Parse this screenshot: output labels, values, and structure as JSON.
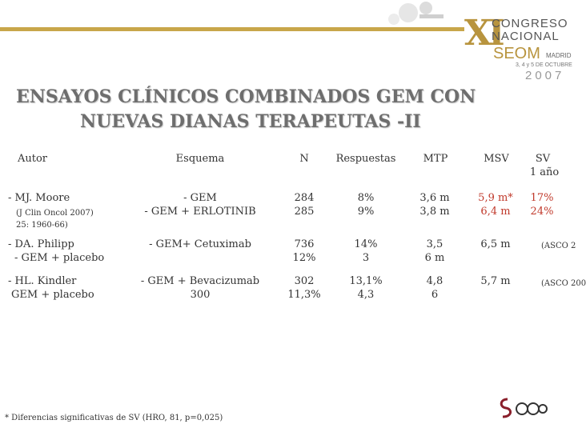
{
  "header": {
    "logo_roman": "XI",
    "logo_line1": "CONGRESO",
    "logo_line2": "NACIONAL",
    "logo_org": "SEOM",
    "logo_city": "MADRID",
    "logo_dates": "3, 4 y 5 DE OCTUBRE",
    "logo_year": "2007"
  },
  "title": {
    "line1": "ENSAYOS CLÍNICOS COMBINADOS GEM CON",
    "line2": "NUEVAS DIANAS TERAPEUTAS -II"
  },
  "table": {
    "headers": {
      "autor": "Autor",
      "esquema": "Esquema",
      "n": "N",
      "respuestas": "Respuestas",
      "mtp": "MTP",
      "msv": "MSV",
      "sv": "SV",
      "sv_sub": "1 año"
    },
    "rows": [
      {
        "autor_line1": "- MJ. Moore",
        "autor_ref1": "(J Clin Oncol 2007)",
        "autor_ref2": "25: 1960-66)",
        "esquema_line1": "- GEM",
        "esquema_line2": "- GEM + ERLOTINIB",
        "n_line1": "284",
        "n_line2": "285",
        "resp_line1": "8%",
        "resp_line2": "9%",
        "mtp_line1": "3,6  m",
        "mtp_line2": "3,8 m",
        "msv_line1": "5,9 m*",
        "msv_line2": "6,4 m",
        "sv_line1": "17%",
        "sv_line2": "24%"
      },
      {
        "autor_line1": "- DA. Philipp",
        "autor_line2": "- GEM + placebo",
        "esquema_line1": "- GEM+ Cetuximab",
        "n_line1": "736",
        "n_line2": "12%",
        "resp_line1": "14%",
        "resp_line2": "3",
        "mtp_line1": "3,5",
        "mtp_line2": "6 m",
        "msv_line1": "6,5 m",
        "sv_line1": "(ASCO 2"
      },
      {
        "autor_line1": "- HL. Kindler",
        "autor_line2": "GEM + placebo",
        "esquema_line1": "- GEM + Bevacizumab",
        "esquema_line2": "300",
        "n_line1": "302",
        "n_line2": "11,3%",
        "resp_line1": "13,1%",
        "resp_line2": "4,3",
        "mtp_line1": "4,8",
        "mtp_line2": "6",
        "msv_line1": "5,7 m",
        "sv_line1": "(ASCO 200"
      }
    ]
  },
  "footnote": "* Diferencias significativas de SV (HRO, 81, p=0,025)",
  "footer_logo": "SEOM",
  "colors": {
    "gold": "#c8a64a",
    "title_gray": "#6e6e6e",
    "red": "#c0392b",
    "text": "#333333"
  }
}
